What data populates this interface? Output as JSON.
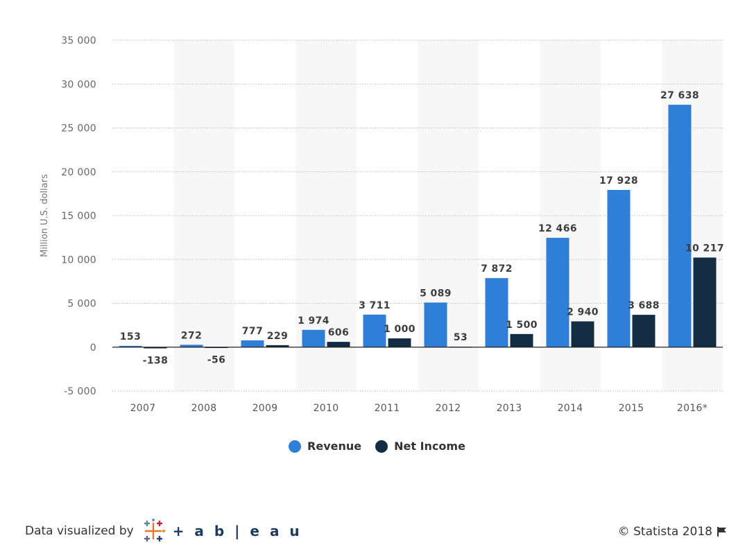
{
  "colors": {
    "revenue": "#2f7ed8",
    "net_income": "#132b43",
    "band": "#f7f7f7",
    "grid": "#bbbbbb"
  },
  "chart_data": {
    "type": "bar",
    "categories": [
      "2007",
      "2008",
      "2009",
      "2010",
      "2011",
      "2012",
      "2013",
      "2014",
      "2015",
      "2016*"
    ],
    "series": [
      {
        "name": "Revenue",
        "values": [
          153,
          272,
          777,
          1974,
          3711,
          5089,
          7872,
          12466,
          17928,
          27638
        ],
        "labels": [
          "153",
          "272",
          "777",
          "1 974",
          "3 711",
          "5 089",
          "7 872",
          "12 466",
          "17 928",
          "27 638"
        ]
      },
      {
        "name": "Net Income",
        "values": [
          -138,
          -56,
          229,
          606,
          1000,
          53,
          1500,
          2940,
          3688,
          10217
        ],
        "labels": [
          "-138",
          "-56",
          "229",
          "606",
          "1 000",
          "53",
          "1 500",
          "2 940",
          "3 688",
          "10 217"
        ]
      }
    ],
    "ylabel": "Million U.S. dollars",
    "ylim": [
      -5000,
      35000
    ],
    "yticks": [
      -5000,
      0,
      5000,
      10000,
      15000,
      20000,
      25000,
      30000,
      35000
    ],
    "ytick_labels": [
      "-5 000",
      "0",
      "5 000",
      "10 000",
      "15 000",
      "20 000",
      "25 000",
      "30 000",
      "35 000"
    ],
    "grid": true,
    "legend_position": "bottom"
  },
  "footer": {
    "left_text": "Data visualized by",
    "brand": "+ a b | e a u",
    "right_text": "© Statista 2018"
  }
}
